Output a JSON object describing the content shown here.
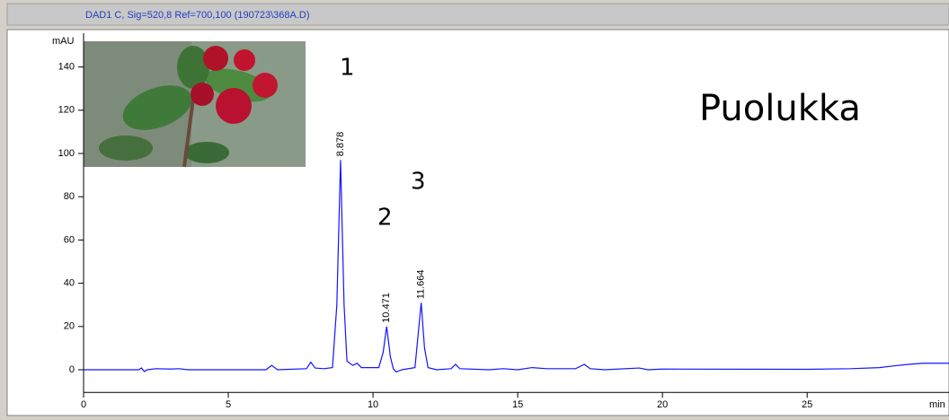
{
  "chart_data": {
    "type": "line",
    "title": "DAD1 C, Sig=520,8 Ref=700,100 (190723\\368A.D)",
    "y_label": "mAU",
    "x_label": "min",
    "annotations": [
      "1",
      "2",
      "3",
      "Puolukka"
    ],
    "peak_labels": [
      "8.878",
      "10.471",
      "11.664"
    ],
    "xlim": [
      0,
      29.9
    ],
    "ylim": [
      -10.5,
      154
    ],
    "xticks": [
      0,
      5,
      10,
      15,
      20,
      25
    ],
    "yticks": [
      0,
      20,
      40,
      60,
      80,
      100,
      120,
      140
    ],
    "series": [
      {
        "color": "#1414ff",
        "x": [
          0,
          1.9,
          2.0,
          2.1,
          2.2,
          2.5,
          3,
          3.3,
          3.6,
          6.3,
          6.5,
          6.7,
          7.7,
          7.85,
          8.0,
          8.3,
          8.6,
          8.75,
          8.878,
          9.0,
          9.1,
          9.3,
          9.45,
          9.6,
          10.2,
          10.35,
          10.471,
          10.6,
          10.7,
          10.8,
          11.0,
          11.45,
          11.55,
          11.664,
          11.78,
          11.9,
          12.2,
          12.7,
          12.85,
          13.0,
          14,
          14.5,
          15,
          15.5,
          16,
          16.5,
          17,
          17.3,
          17.5,
          18,
          19.2,
          19.5,
          20,
          25,
          26.5,
          27.5,
          28,
          28.5,
          29,
          29.9
        ],
        "values": [
          0,
          0,
          0.8,
          -0.8,
          0,
          0.5,
          0.3,
          0.5,
          0,
          0,
          2,
          0,
          0.5,
          3.5,
          0.8,
          0.5,
          1,
          30,
          97,
          30,
          4,
          2,
          3,
          1,
          1,
          8,
          20,
          6,
          0.5,
          -1,
          0,
          1,
          15,
          31,
          10,
          1,
          0,
          0.5,
          2.5,
          0.5,
          0,
          0.5,
          0,
          1,
          0.5,
          0.5,
          0.5,
          2.5,
          0.5,
          0,
          0.8,
          0,
          0.3,
          0.2,
          0.5,
          1,
          1.8,
          2.5,
          3,
          3
        ]
      }
    ]
  }
}
